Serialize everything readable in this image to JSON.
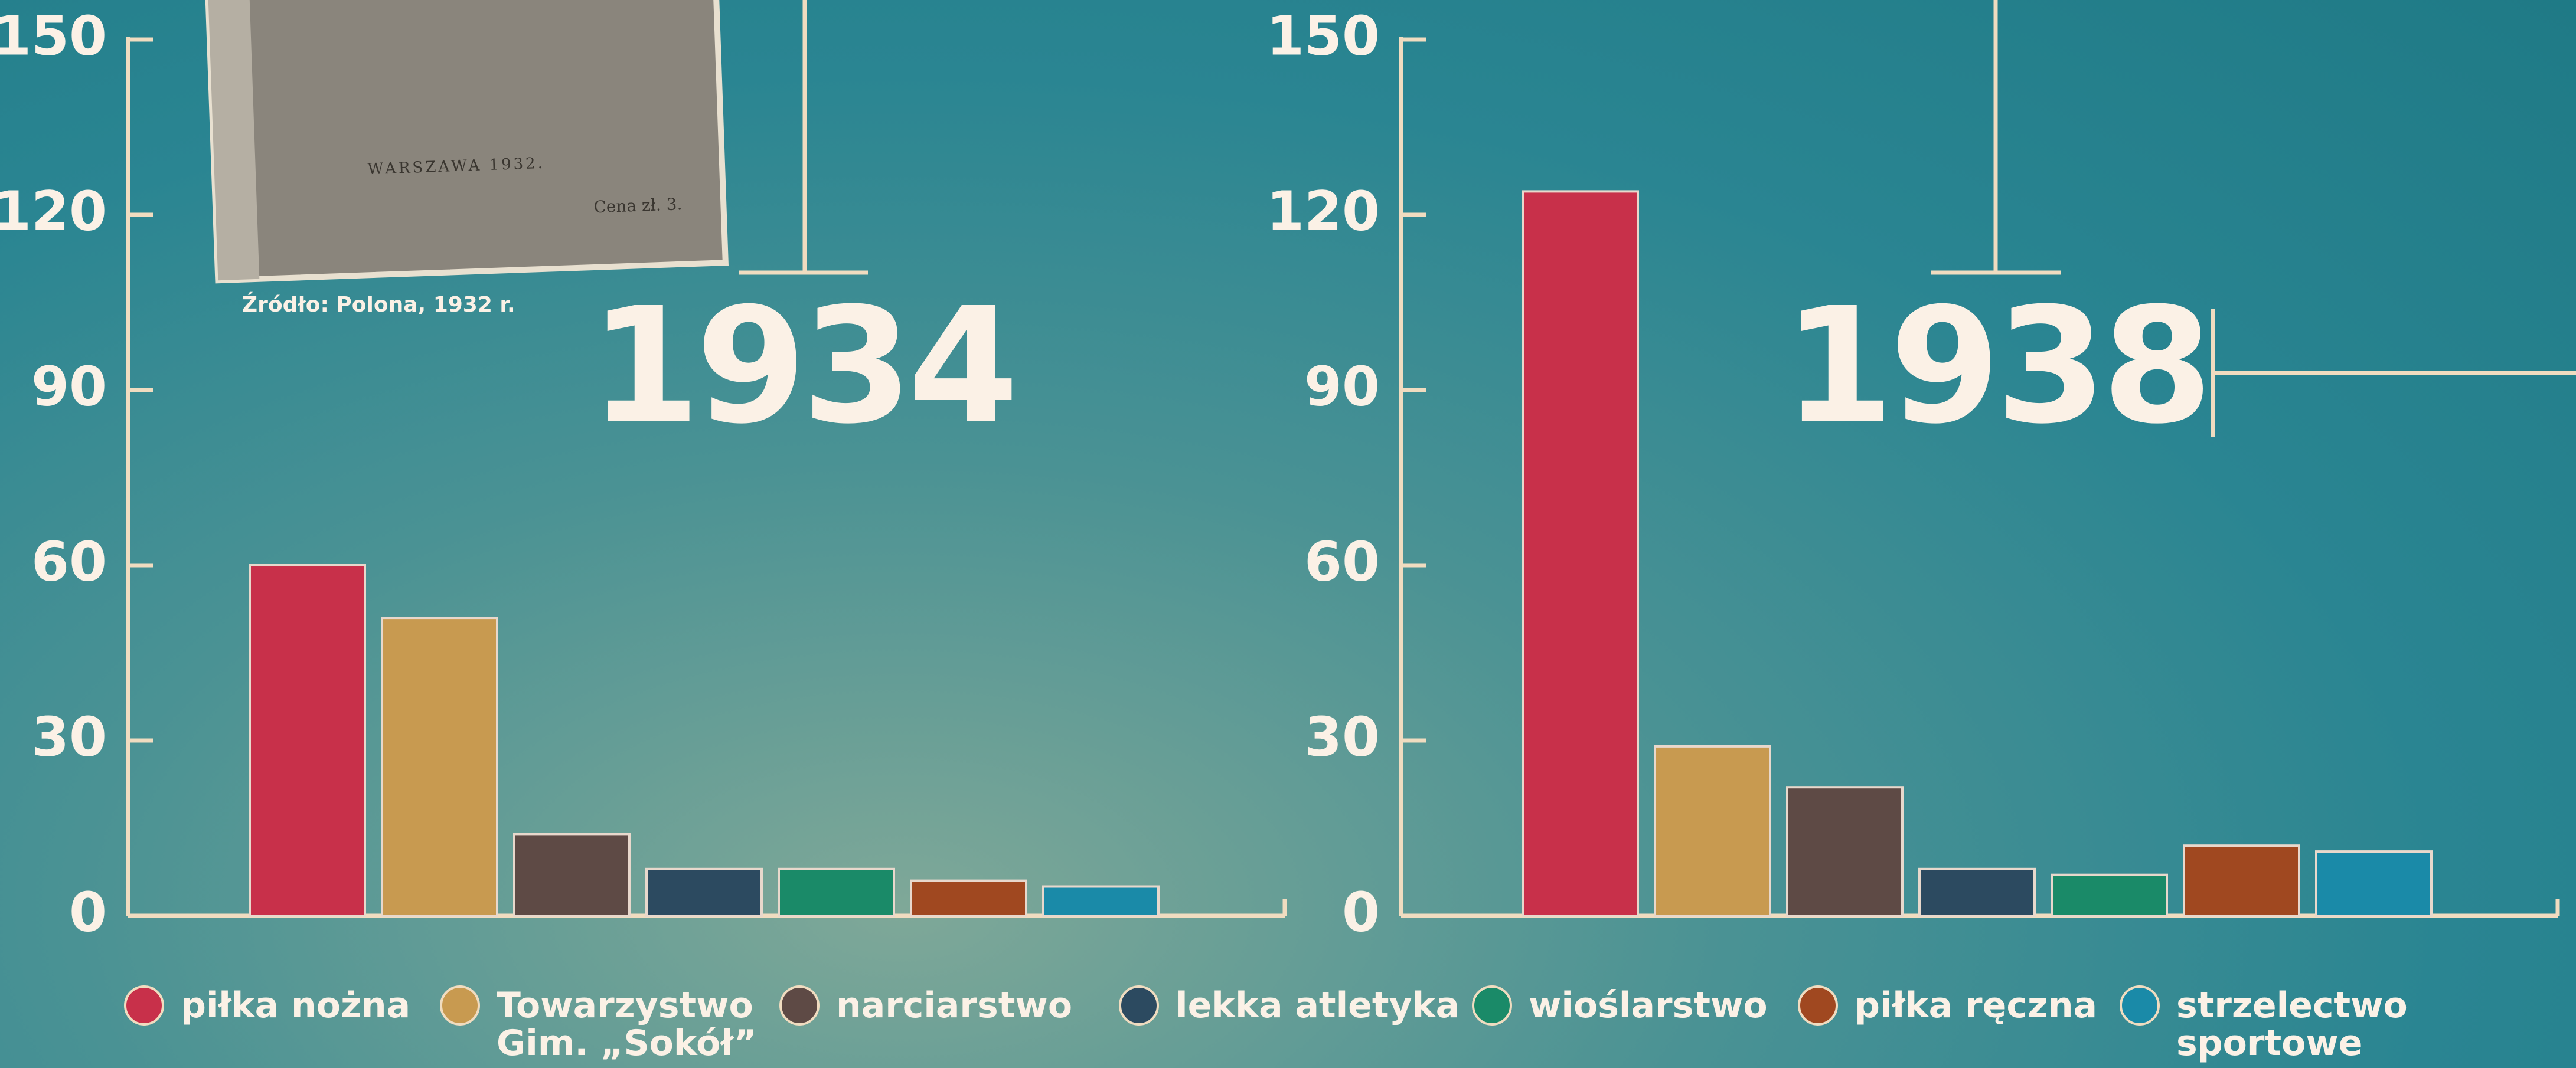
{
  "chart_data": [
    {
      "type": "bar",
      "title": "1934",
      "categories": [
        "piłka nożna",
        "Towarzystwo Gim. „Sokół”",
        "narciarstwo",
        "lekka atletyka",
        "wioślarstwo",
        "piłka ręczna",
        "strzelectwo sportowe"
      ],
      "values": [
        60,
        51,
        14,
        8,
        8,
        6,
        5
      ],
      "colors": [
        "#c8304a",
        "#c89a50",
        "#5e4a45",
        "#2c4a60",
        "#1a8a68",
        "#a04820",
        "#1a8aa8"
      ],
      "ylim": [
        0,
        150
      ],
      "yticks": [
        0,
        30,
        60,
        90,
        120,
        150
      ]
    },
    {
      "type": "bar",
      "title": "1938",
      "categories": [
        "piłka nożna",
        "Towarzystwo Gim. „Sokół”",
        "narciarstwo",
        "lekka atletyka",
        "wioślarstwo",
        "piłka ręczna",
        "strzelectwo sportowe"
      ],
      "values": [
        124,
        29,
        22,
        8,
        7,
        12,
        11
      ],
      "colors": [
        "#c8304a",
        "#c89a50",
        "#5e4a45",
        "#2c4a60",
        "#1a8a68",
        "#a04820",
        "#1a8aa8"
      ],
      "ylim": [
        0,
        150
      ],
      "yticks": [
        0,
        30,
        60,
        90,
        120,
        150
      ]
    }
  ],
  "source": "Źródło: Polona, 1932 r.",
  "book": {
    "place": "WARSZAWA 1932.",
    "price": "Cena zł. 3."
  }
}
